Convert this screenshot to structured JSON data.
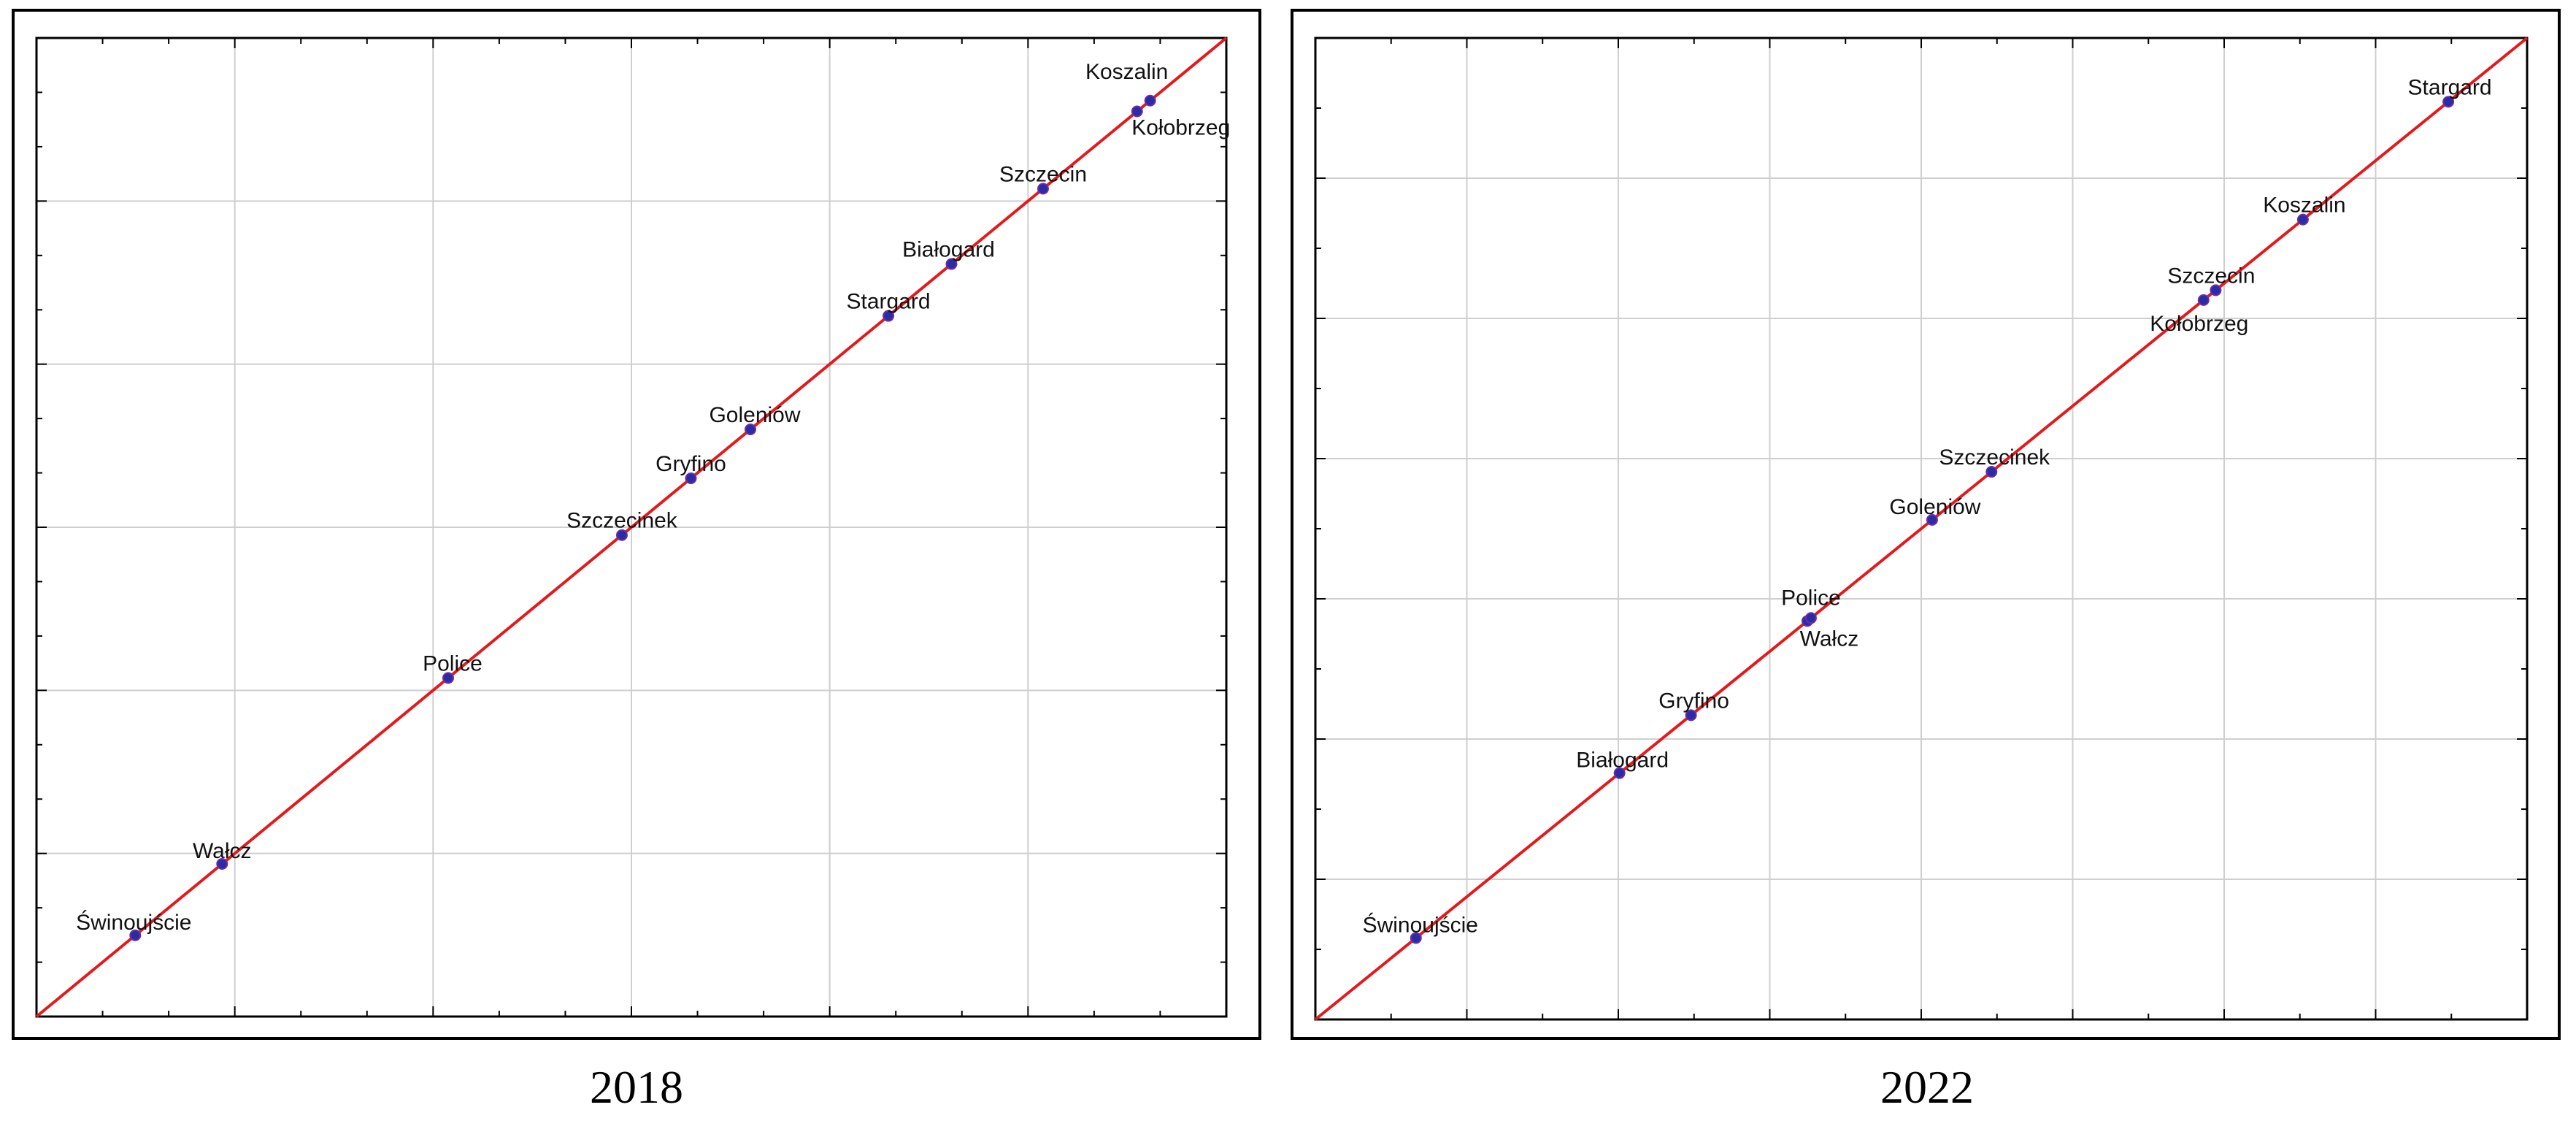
{
  "colors": {
    "line": "#e31a1c",
    "point": "#2b2ba8",
    "grid": "#cfcfcf",
    "frame": "#000000",
    "label": "#111111"
  },
  "chart_data": [
    {
      "type": "scatter",
      "caption": "2018",
      "xlim": [
        0,
        100
      ],
      "ylim": [
        0,
        100
      ],
      "grid": true,
      "legend": "none",
      "reference_line": {
        "from": [
          0,
          0
        ],
        "to": [
          100,
          100
        ]
      },
      "points": [
        {
          "label": "Świnoujście",
          "x": 8.3,
          "y": 8.3
        },
        {
          "label": "Wałcz",
          "x": 15.6,
          "y": 15.6
        },
        {
          "label": "Police",
          "x": 34.6,
          "y": 34.6
        },
        {
          "label": "Szczecinek",
          "x": 49.2,
          "y": 49.2
        },
        {
          "label": "Gryfino",
          "x": 55.0,
          "y": 55.0
        },
        {
          "label": "Goleniów",
          "x": 60.0,
          "y": 60.0
        },
        {
          "label": "Stargard",
          "x": 71.6,
          "y": 71.6
        },
        {
          "label": "Białogard",
          "x": 76.9,
          "y": 76.9
        },
        {
          "label": "Szczecin",
          "x": 84.6,
          "y": 84.6
        },
        {
          "label": "Kołobrzeg",
          "x": 92.5,
          "y": 92.5
        },
        {
          "label": "Koszalin",
          "x": 93.6,
          "y": 93.6
        }
      ]
    },
    {
      "type": "scatter",
      "caption": "2022",
      "xlim": [
        0,
        100
      ],
      "ylim": [
        0,
        100
      ],
      "grid": true,
      "legend": "none",
      "reference_line": {
        "from": [
          0,
          0
        ],
        "to": [
          100,
          100
        ]
      },
      "points": [
        {
          "label": "Świnoujście",
          "x": 8.3,
          "y": 8.3
        },
        {
          "label": "Białogard",
          "x": 25.1,
          "y": 25.1
        },
        {
          "label": "Gryfino",
          "x": 31.0,
          "y": 31.0
        },
        {
          "label": "Wałcz",
          "x": 40.6,
          "y": 40.6
        },
        {
          "label": "Police",
          "x": 40.9,
          "y": 40.9
        },
        {
          "label": "Goleniów",
          "x": 50.9,
          "y": 50.9
        },
        {
          "label": "Szczecinek",
          "x": 55.8,
          "y": 55.8
        },
        {
          "label": "Kołobrzeg",
          "x": 73.3,
          "y": 73.3
        },
        {
          "label": "Szczecin",
          "x": 74.3,
          "y": 74.3
        },
        {
          "label": "Koszalin",
          "x": 81.5,
          "y": 81.5
        },
        {
          "label": "Stargard",
          "x": 93.5,
          "y": 93.5
        }
      ]
    }
  ]
}
